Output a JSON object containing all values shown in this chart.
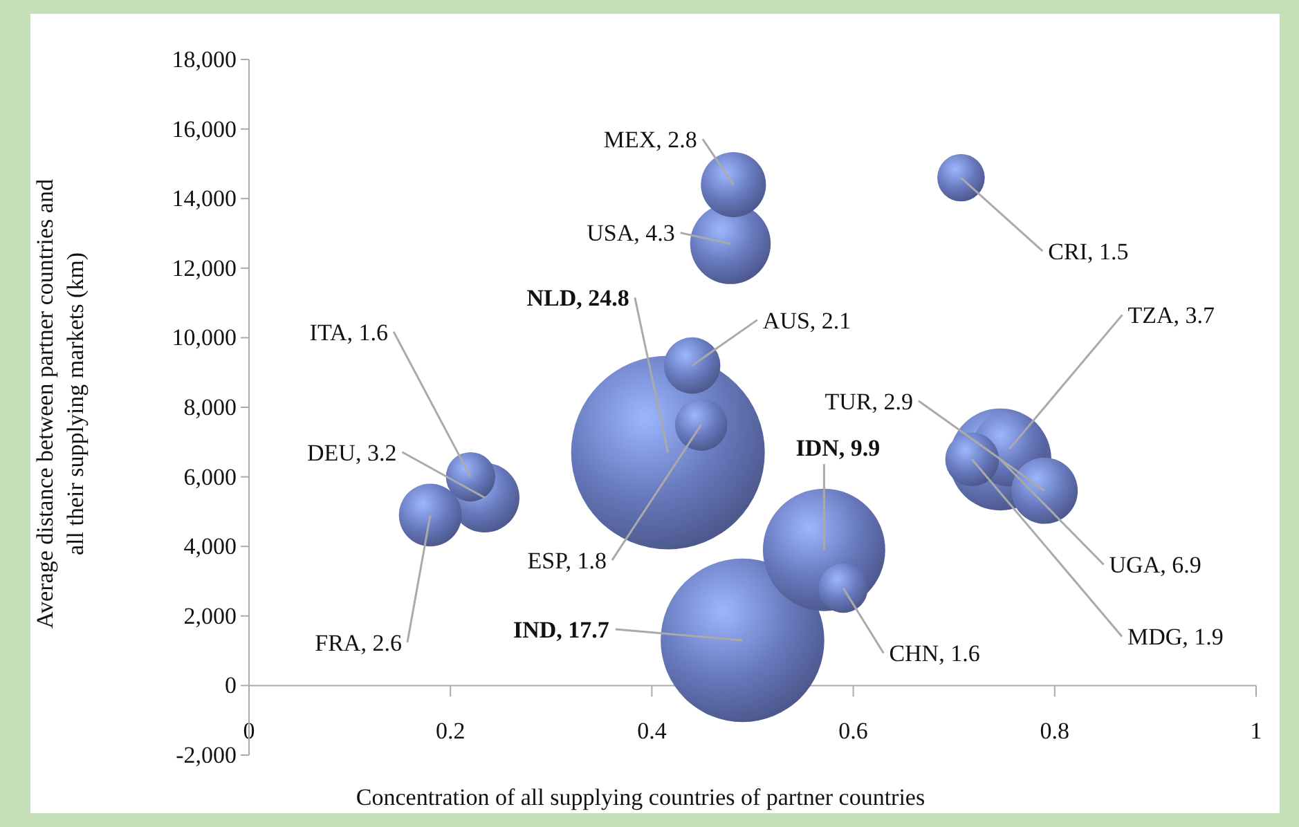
{
  "chart_data": {
    "type": "bubble",
    "xlabel": "Concentration of all supplying countries of partner countries",
    "ylabel": "Average distance between partner countries and all their supplying markets (km)",
    "xlim": [
      0,
      1
    ],
    "xticks": [
      0,
      0.2,
      0.4,
      0.6,
      0.8,
      1
    ],
    "ylim": [
      -2000,
      18000
    ],
    "yticks": [
      {
        "value": -2000,
        "label": "-2,000"
      },
      0,
      {
        "value": 2000,
        "label": "2,000"
      },
      {
        "value": 4000,
        "label": "4,000"
      },
      {
        "value": 6000,
        "label": "6,000"
      },
      {
        "value": 8000,
        "label": "8,000"
      },
      {
        "value": 10000,
        "label": "10,000"
      },
      {
        "value": 12000,
        "label": "12,000"
      },
      {
        "value": 14000,
        "label": "14,000"
      },
      {
        "value": 16000,
        "label": "16,000"
      },
      {
        "value": 18000,
        "label": "18,000"
      }
    ],
    "grid": false,
    "series": [
      {
        "color": "#6677bb",
        "x": [
          0.481,
          0.478,
          0.707,
          0.44,
          0.416,
          0.449,
          0.22,
          0.234,
          0.18,
          0.571,
          0.59,
          0.49,
          0.755,
          0.746,
          0.79,
          0.718
        ],
        "values": [
          14400,
          12700,
          14600,
          9200,
          6700,
          7500,
          6000,
          5400,
          4900,
          3900,
          2800,
          1300,
          6800,
          6500,
          5600,
          6500
        ],
        "sizes": [
          0.113,
          0.173,
          0.06,
          0.085,
          1,
          0.073,
          0.065,
          0.129,
          0.105,
          0.399,
          0.065,
          0.714,
          0.149,
          0.278,
          0.117,
          0.077
        ]
      }
    ],
    "annotations": [
      {
        "text": "MEX, 2.8",
        "x": 0.481,
        "y": 14400
      },
      {
        "text": "USA, 4.3",
        "x": 0.478,
        "y": 12700
      },
      {
        "text": "CRI, 1.5",
        "x": 0.707,
        "y": 14600
      },
      {
        "text": "AUS, 2.1",
        "x": 0.44,
        "y": 9200
      },
      {
        "text": "NLD, 24.8",
        "x": 0.416,
        "y": 6700
      },
      {
        "text": "ESP, 1.8",
        "x": 0.449,
        "y": 7500
      },
      {
        "text": "ITA, 1.6",
        "x": 0.22,
        "y": 6000
      },
      {
        "text": "DEU, 3.2",
        "x": 0.234,
        "y": 5400
      },
      {
        "text": "FRA, 2.6",
        "x": 0.18,
        "y": 4900
      },
      {
        "text": "IDN, 9.9",
        "x": 0.571,
        "y": 3900
      },
      {
        "text": "CHN, 1.6",
        "x": 0.59,
        "y": 2800
      },
      {
        "text": "IND, 17.7",
        "x": 0.49,
        "y": 1300
      },
      {
        "text": "TZA, 3.7",
        "x": 0.755,
        "y": 6800
      },
      {
        "text": "UGA, 6.9",
        "x": 0.746,
        "y": 6500
      },
      {
        "text": "TUR, 2.9",
        "x": 0.79,
        "y": 5600
      },
      {
        "text": "MDG, 1.9",
        "x": 0.718,
        "y": 6500
      }
    ]
  }
}
